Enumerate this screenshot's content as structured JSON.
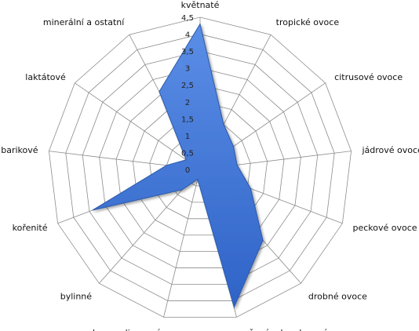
{
  "chart_data": {
    "type": "radar",
    "categories": [
      "květnaté",
      "tropické ovoce",
      "citrusové ovoce",
      "jádrové ovoce",
      "peckové ovoce",
      "drobné ovoce",
      "sušené a kandované ovoce",
      "karamelizované",
      "bylinné",
      "kořenité",
      "barikové",
      "laktátové",
      "minerální a ostatní"
    ],
    "series": [
      {
        "values": [
          4.3,
          1.5,
          1.2,
          1.1,
          1.6,
          2.8,
          4.2,
          0.3,
          0.8,
          3.4,
          1.0,
          0.5,
          2.6
        ]
      }
    ],
    "ticks": [
      "0",
      "0,5",
      "1",
      "1,5",
      "2",
      "2,5",
      "3",
      "3,5",
      "4",
      "4,5"
    ],
    "rmax": 4.5,
    "grid": true,
    "colors": {
      "fill_top": "#5b8ee6",
      "fill_bottom": "#2f63c7",
      "stroke": "#2a5aa8"
    }
  }
}
